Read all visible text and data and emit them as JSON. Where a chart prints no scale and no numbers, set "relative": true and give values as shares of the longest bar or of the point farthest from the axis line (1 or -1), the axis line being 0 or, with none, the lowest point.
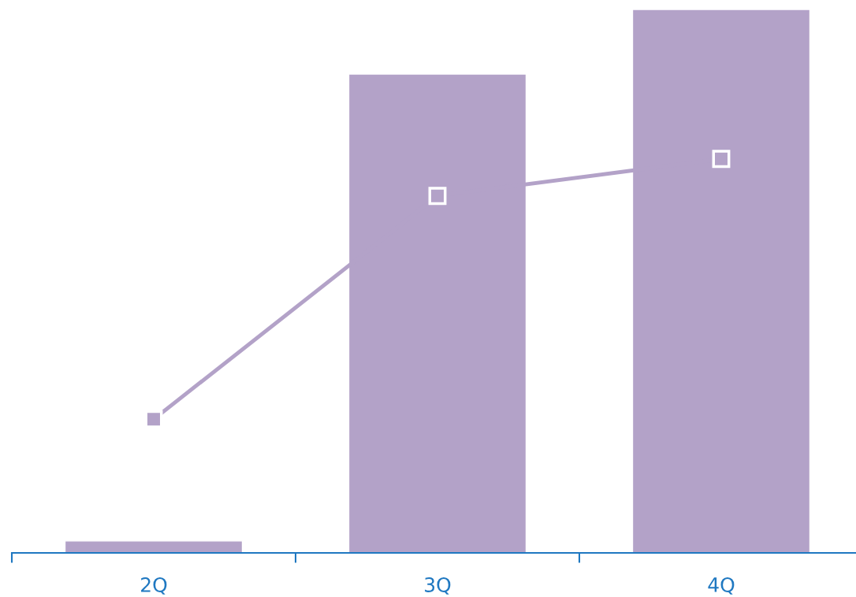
{
  "chart_data": {
    "type": "bar",
    "relative": true,
    "categories": [
      "2Q",
      "3Q",
      "4Q"
    ],
    "series": [
      {
        "color": "#b3a2c8",
        "values": [
          0.022,
          0.881,
          1.0
        ]
      },
      {
        "type": "line",
        "color": "#b3a2c8",
        "marker": "square",
        "values": [
          0.246,
          0.657,
          0.725
        ]
      }
    ],
    "grid": false,
    "legend": false,
    "tick_labels": "x"
  }
}
